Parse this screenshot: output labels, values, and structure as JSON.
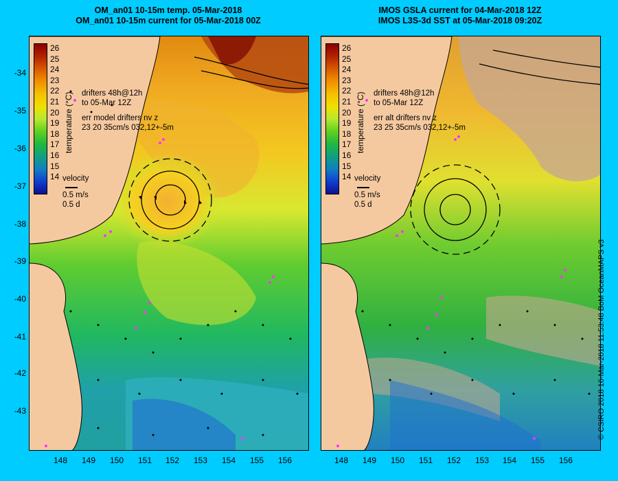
{
  "left_panel": {
    "title_line1": "OM_an01 10-15m temp. 05-Mar-2018",
    "title_line2": "OM_an01 10-15m current for 05-Mar-2018 00Z",
    "drifters_line1": "drifters 48h@12h",
    "drifters_line2": "to 05-Mar 12Z",
    "err_line1": "err model drifters nv z",
    "err_line2": "23 20 35cm/s 032,12+-5m",
    "velocity_title": "velocity",
    "velocity_speed": "0.5 m/s",
    "velocity_days": "0.5 d"
  },
  "right_panel": {
    "title_line1": "IMOS GSLA current for 04-Mar-2018 12Z",
    "title_line2": "IMOS L3S-3d SST at 05-Mar-2018 09:20Z",
    "drifters_line1": "drifters 48h@12h",
    "drifters_line2": "to 05-Mar 12Z",
    "err_line1": "err alt drifters nv z",
    "err_line2": "23 25 35cm/s 032,12+-5m",
    "velocity_title": "velocity",
    "velocity_speed": "0.5 m/s",
    "velocity_days": "0.5 d"
  },
  "colorbar": {
    "title": "temperature (°C)",
    "labels": [
      "26",
      "25",
      "24",
      "23",
      "22",
      "21",
      "20",
      "19",
      "18",
      "17",
      "16",
      "15",
      "14"
    ],
    "colors": [
      "#8b0000",
      "#b22200",
      "#d95a00",
      "#f09000",
      "#f5c000",
      "#f0e000",
      "#b8e830",
      "#60d020",
      "#20b840",
      "#10a080",
      "#1080c0",
      "#1040d0",
      "#101090"
    ]
  },
  "y_axis_labels": [
    "-34",
    "-35",
    "-36",
    "-37",
    "-38",
    "-39",
    "-40",
    "-41",
    "-42",
    "-43"
  ],
  "x_axis_labels": [
    "148",
    "149",
    "150",
    "151",
    "152",
    "153",
    "154",
    "155",
    "156"
  ],
  "credit": "© CSIRO 2018  16-Mar-2018 11:53:48 BoM OceanMAPS v3",
  "colors": {
    "background": "#00ccff",
    "land": "#f5c9a0",
    "cloud": "#c8a890",
    "drifter": "#ff33ff"
  }
}
